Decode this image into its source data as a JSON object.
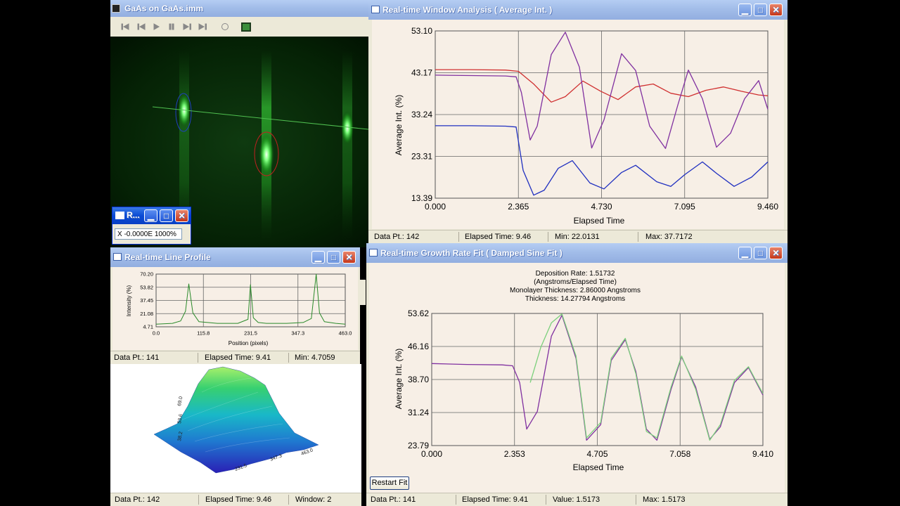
{
  "image_window": {
    "title": "GaAs on GaAs.imm",
    "toolbar_icons": [
      "skip-start-icon",
      "step-back-icon",
      "play-icon",
      "pause-icon",
      "step-forward-icon",
      "skip-end-icon",
      "loop-icon",
      "grid-icon"
    ]
  },
  "mini_window": {
    "title": "R...",
    "readout": "X -0.0000E 1000%"
  },
  "window_analysis": {
    "title": "Real-time Window Analysis ( Average Int. )",
    "ylabel": "Average Int. (%)",
    "xlabel": "Elapsed Time",
    "yticks": [
      "53.10",
      "43.17",
      "33.24",
      "23.31",
      "13.39"
    ],
    "xticks": [
      "0.000",
      "2.365",
      "4.730",
      "7.095",
      "9.460"
    ],
    "status": {
      "data_pt": "Data Pt.: 142",
      "elapsed": "Elapsed Time: 9.46",
      "min": "Min: 22.0131",
      "max": "Max: 37.7172"
    }
  },
  "line_profile": {
    "title": "Real-time Line Profile",
    "ylabel": "Intensity (%)",
    "xlabel": "Position (pixels)",
    "yticks": [
      "70.20",
      "53.82",
      "37.45",
      "21.08",
      "4.71"
    ],
    "xticks": [
      "0.0",
      "115.8",
      "231.5",
      "347.3",
      "463.0"
    ],
    "status": {
      "data_pt": "Data Pt.: 141",
      "elapsed": "Elapsed Time: 9.41",
      "min": "Min: 4.7059"
    }
  },
  "surface_3d": {
    "status": {
      "data_pt": "Data Pt.: 142",
      "elapsed": "Elapsed Time: 9.46",
      "window": "Window: 2"
    }
  },
  "growth_fit": {
    "title": "Real-time Growth Rate Fit ( Damped Sine Fit )",
    "info": [
      "Deposition Rate: 1.51732",
      "(Angstroms/Elapsed Time)",
      "Monolayer Thickness: 2.86000 Angstroms",
      "Thickness: 14.27794 Angstroms"
    ],
    "ylabel": "Average Int. (%)",
    "xlabel": "Elapsed Time",
    "yticks": [
      "53.62",
      "46.16",
      "38.70",
      "31.24",
      "23.79"
    ],
    "xticks": [
      "0.000",
      "2.353",
      "4.705",
      "7.058",
      "9.410"
    ],
    "restart_label": "Restart Fit",
    "status": {
      "data_pt": "Data Pt.: 141",
      "elapsed": "Elapsed Time: 9.41",
      "value": "Value: 1.5173",
      "max": "Max: 1.5173"
    }
  },
  "colors": {
    "titlebar": "#a2bde9",
    "plot_bg": "#f7efe6",
    "series_red": "#d03030",
    "series_purple": "#8030a0",
    "series_blue": "#2030c0",
    "profile_green": "#2a8a2a",
    "rheed_green": "#33ff55"
  },
  "chart_data": [
    {
      "type": "line",
      "xlabel": "Elapsed Time",
      "ylabel": "Average Int. (%)",
      "xlim": [
        0,
        9.46
      ],
      "ylim": [
        13.39,
        53.1
      ],
      "grid": true,
      "series": [
        {
          "color": "#d03030",
          "x": [
            0,
            1,
            2,
            2.365,
            2.8,
            3.3,
            3.7,
            4.2,
            4.7,
            5.2,
            5.7,
            6.2,
            6.7,
            7.2,
            7.7,
            8.2,
            8.7,
            9.2,
            9.46
          ],
          "values": [
            43.9,
            43.9,
            43.8,
            43.5,
            40.5,
            36.2,
            37.5,
            41.2,
            38.8,
            36.8,
            39.8,
            40.5,
            38.3,
            37.5,
            39.0,
            39.8,
            38.8,
            37.9,
            37.7
          ]
        },
        {
          "color": "#8030a0",
          "x": [
            0,
            1,
            2,
            2.3,
            2.45,
            2.7,
            2.9,
            3.3,
            3.7,
            4.1,
            4.45,
            4.8,
            5.3,
            5.7,
            6.1,
            6.55,
            6.9,
            7.2,
            7.6,
            8,
            8.4,
            8.8,
            9.2,
            9.46
          ],
          "values": [
            42.6,
            42.5,
            42.4,
            42.2,
            38.5,
            27.2,
            30.5,
            47.5,
            52.8,
            44.5,
            25.3,
            32,
            47.7,
            43.7,
            30.5,
            25.2,
            35.5,
            43.8,
            37,
            25.5,
            28.8,
            37,
            41.3,
            34.5
          ]
        },
        {
          "color": "#2030c0",
          "x": [
            0,
            1,
            2,
            2.3,
            2.5,
            2.8,
            3.1,
            3.5,
            3.9,
            4.4,
            4.8,
            5.3,
            5.7,
            6.3,
            6.7,
            7.1,
            7.6,
            8,
            8.5,
            9,
            9.46
          ],
          "values": [
            30.6,
            30.6,
            30.5,
            30.3,
            20,
            14.1,
            15.3,
            20.5,
            22.3,
            17,
            15.6,
            19.5,
            21.2,
            17.3,
            16.2,
            19,
            22,
            19.3,
            16.2,
            18.4,
            22
          ]
        }
      ]
    },
    {
      "type": "line",
      "xlabel": "Position (pixels)",
      "ylabel": "Intensity (%)",
      "xlim": [
        0,
        463
      ],
      "ylim": [
        4.71,
        70.2
      ],
      "grid": true,
      "series": [
        {
          "color": "#2a8a2a",
          "x": [
            0,
            40,
            60,
            72,
            80,
            90,
            105,
            150,
            200,
            225,
            231,
            238,
            250,
            270,
            320,
            360,
            380,
            392,
            400,
            412,
            440,
            463
          ],
          "values": [
            8,
            9,
            12,
            24,
            58,
            22,
            11,
            9,
            9,
            14,
            57,
            16,
            10,
            9,
            9,
            10,
            15,
            70,
            22,
            11,
            9,
            8
          ]
        }
      ]
    },
    {
      "type": "line",
      "xlabel": "Elapsed Time",
      "ylabel": "Average Int. (%)",
      "xlim": [
        0,
        9.41
      ],
      "ylim": [
        23.79,
        53.62
      ],
      "grid": true,
      "series": [
        {
          "color": "#8030a0",
          "x": [
            0,
            1,
            2,
            2.3,
            2.5,
            2.7,
            3.0,
            3.4,
            3.7,
            4.1,
            4.4,
            4.8,
            5.1,
            5.5,
            5.8,
            6.1,
            6.4,
            6.8,
            7.1,
            7.5,
            7.9,
            8.2,
            8.6,
            9,
            9.41
          ],
          "values": [
            42.3,
            42.1,
            42,
            41.8,
            38,
            27.5,
            31.5,
            48.5,
            53.2,
            43.5,
            25,
            28.5,
            43,
            47.7,
            40.5,
            27.5,
            25,
            36.5,
            43.8,
            37,
            25.2,
            28,
            38,
            41.4,
            35.2
          ]
        },
        {
          "color": "#7bd07b",
          "x": [
            2.8,
            3.1,
            3.4,
            3.7,
            4.1,
            4.4,
            4.8,
            5.1,
            5.5,
            5.8,
            6.1,
            6.4,
            6.8,
            7.1,
            7.5,
            7.9,
            8.2,
            8.6,
            9,
            9.41
          ],
          "values": [
            38,
            46,
            51.5,
            53.5,
            44,
            25.5,
            29,
            43.5,
            48,
            40,
            27,
            25.5,
            37,
            44,
            36.5,
            25,
            28.5,
            38.5,
            41.6,
            35.5
          ]
        }
      ]
    }
  ]
}
